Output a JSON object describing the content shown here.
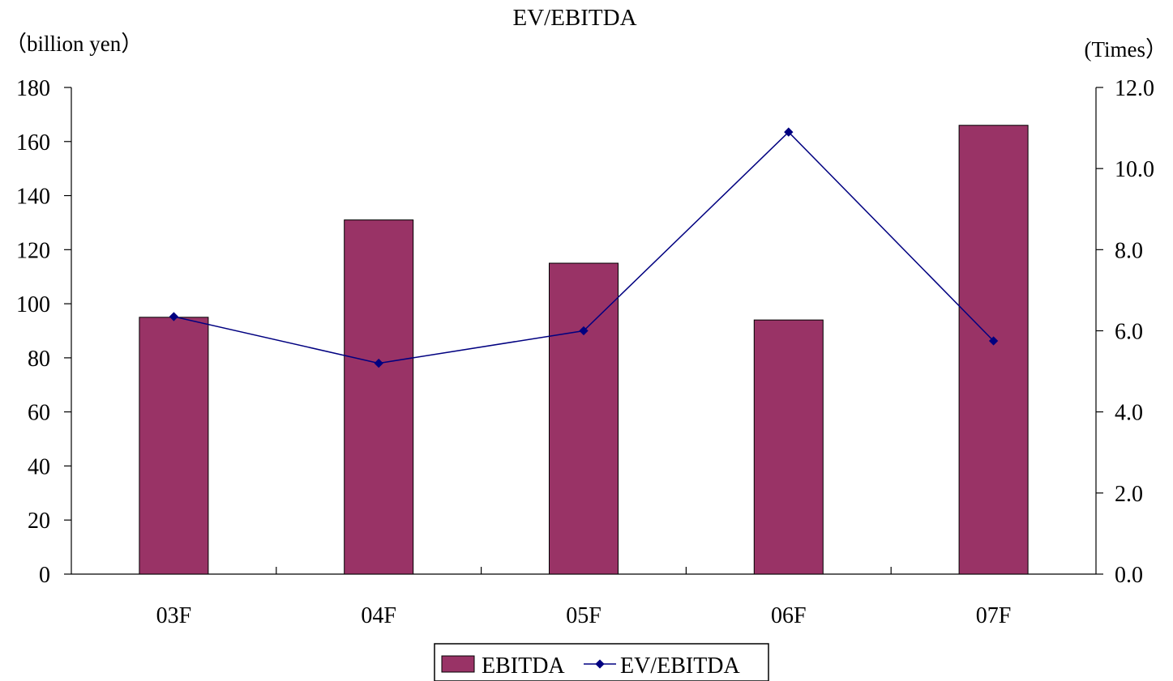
{
  "chart_data": {
    "type": "bar",
    "title": "EV/EBITDA",
    "left_axis_label": "（billion yen）",
    "right_axis_label": "(Times）",
    "categories": [
      "03F",
      "04F",
      "05F",
      "06F",
      "07F"
    ],
    "left_axis": {
      "min": 0,
      "max": 180,
      "step": 20,
      "tick_labels": [
        "0",
        "20",
        "40",
        "60",
        "80",
        "100",
        "120",
        "140",
        "160",
        "180"
      ]
    },
    "right_axis": {
      "min": 0,
      "max": 12,
      "step": 2,
      "tick_labels": [
        "0.0",
        "2.0",
        "4.0",
        "6.0",
        "8.0",
        "10.0",
        "12.0"
      ]
    },
    "series": [
      {
        "name": "EBITDA",
        "type": "bar",
        "axis": "left",
        "color": "#993366",
        "values": [
          95,
          131,
          115,
          94,
          166
        ]
      },
      {
        "name": "EV/EBITDA",
        "type": "line",
        "axis": "right",
        "color": "#000080",
        "values": [
          6.35,
          5.2,
          6.0,
          10.9,
          5.75
        ]
      }
    ],
    "legend": {
      "position": "bottom-center",
      "entries": [
        "EBITDA",
        "EV/EBITDA"
      ]
    },
    "grid": false
  }
}
